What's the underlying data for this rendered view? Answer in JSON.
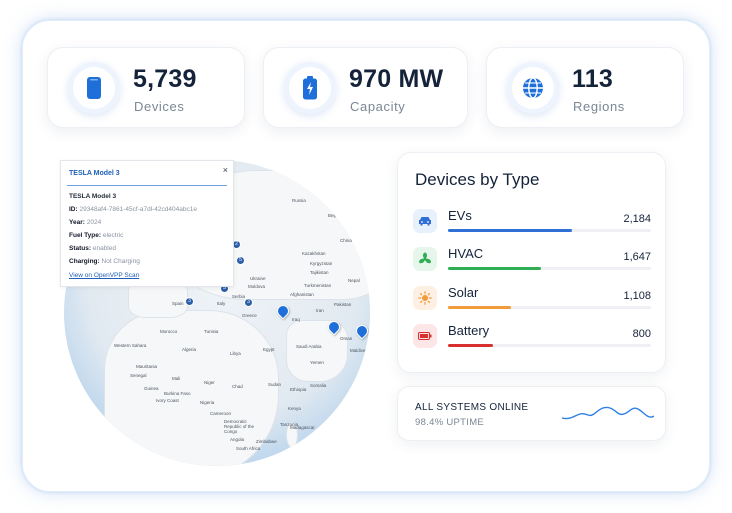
{
  "stats": [
    {
      "value": "5,739",
      "label": "Devices",
      "icon": "phone-icon"
    },
    {
      "value": "970 MW",
      "label": "Capacity",
      "icon": "battery-bolt-icon"
    },
    {
      "value": "113",
      "label": "Regions",
      "icon": "globe-icon"
    }
  ],
  "popup": {
    "header": "TESLA Model 3",
    "title": "TESLA Model 3",
    "close": "×",
    "fields": [
      {
        "key": "ID:",
        "value": "29348af4-7861-45cf-a7dl-42cd404abc1e"
      },
      {
        "key": "Year:",
        "value": "2024"
      },
      {
        "key": "Fuel Type:",
        "value": "electric"
      },
      {
        "key": "Status:",
        "value": "enabled"
      },
      {
        "key": "Charging:",
        "value": "Not Charging"
      }
    ],
    "link": "View on OpenVPP Scan"
  },
  "map": {
    "labels": {
      "russia": "Russia",
      "beijing": "Beijing",
      "china": "China",
      "kazakhstan": "Kazakhstan",
      "kyrgyzstan": "Kyrgyzstan",
      "tajikistan": "Tajikistan",
      "nepal": "Nepal",
      "ukraine": "Ukraine",
      "moldova": "Moldova",
      "turkmenistan": "Turkmenistan",
      "afghanistan": "Afghanistan",
      "pakistan": "Pakistan",
      "spain": "Spain",
      "italy": "Italy",
      "serbia": "Serbia",
      "greece": "Greece",
      "iraq": "Iraq",
      "iran": "Iran",
      "oman": "Oman",
      "morocco": "Morocco",
      "tunisia": "Tunisia",
      "algeria": "Algeria",
      "libya": "Libya",
      "egypt": "Egypt",
      "saudi": "Saudi Arabia",
      "yemen": "Yemen",
      "maldives": "Maldives",
      "mauritania": "Mauritania",
      "mali": "Mali",
      "niger": "Niger",
      "chad": "Chad",
      "sudan": "Sudan",
      "ethiopia": "Ethiopia",
      "somalia": "Somalia",
      "senegal": "Senegal",
      "guinea": "Guinea",
      "burkina": "Burkina Faso",
      "ivory": "Ivory Coast",
      "nigeria": "Nigeria",
      "cameroon": "Cameroon",
      "kenya": "Kenya",
      "drc": "Democratic Republic of the Congo",
      "tanzania": "Tanzania",
      "angola": "Angola",
      "zimbabwe": "Zimbabwe",
      "madagascar": "Madagascar",
      "southafrica": "South Africa",
      "westernsahara": "Western Sahara"
    }
  },
  "device_types": {
    "title": "Devices by Type",
    "items": [
      {
        "name": "EVs",
        "value": "2,184",
        "fraction": 0.61,
        "color": "#2f6fd6",
        "bg": "#e8f0fc",
        "icon": "car-icon"
      },
      {
        "name": "HVAC",
        "value": "1,647",
        "fraction": 0.46,
        "color": "#2fae55",
        "bg": "#e6f6ea",
        "icon": "fan-icon"
      },
      {
        "name": "Solar",
        "value": "1,108",
        "fraction": 0.31,
        "color": "#f39a3a",
        "bg": "#fdf0e2",
        "icon": "sun-icon"
      },
      {
        "name": "Battery",
        "value": "800",
        "fraction": 0.22,
        "color": "#d8302f",
        "bg": "#fce6e6",
        "icon": "battery-icon"
      }
    ]
  },
  "status": {
    "title": "ALL SYSTEMS ONLINE",
    "subtitle": "98.4% UPTIME",
    "sparkline_color": "#2f80e6"
  }
}
